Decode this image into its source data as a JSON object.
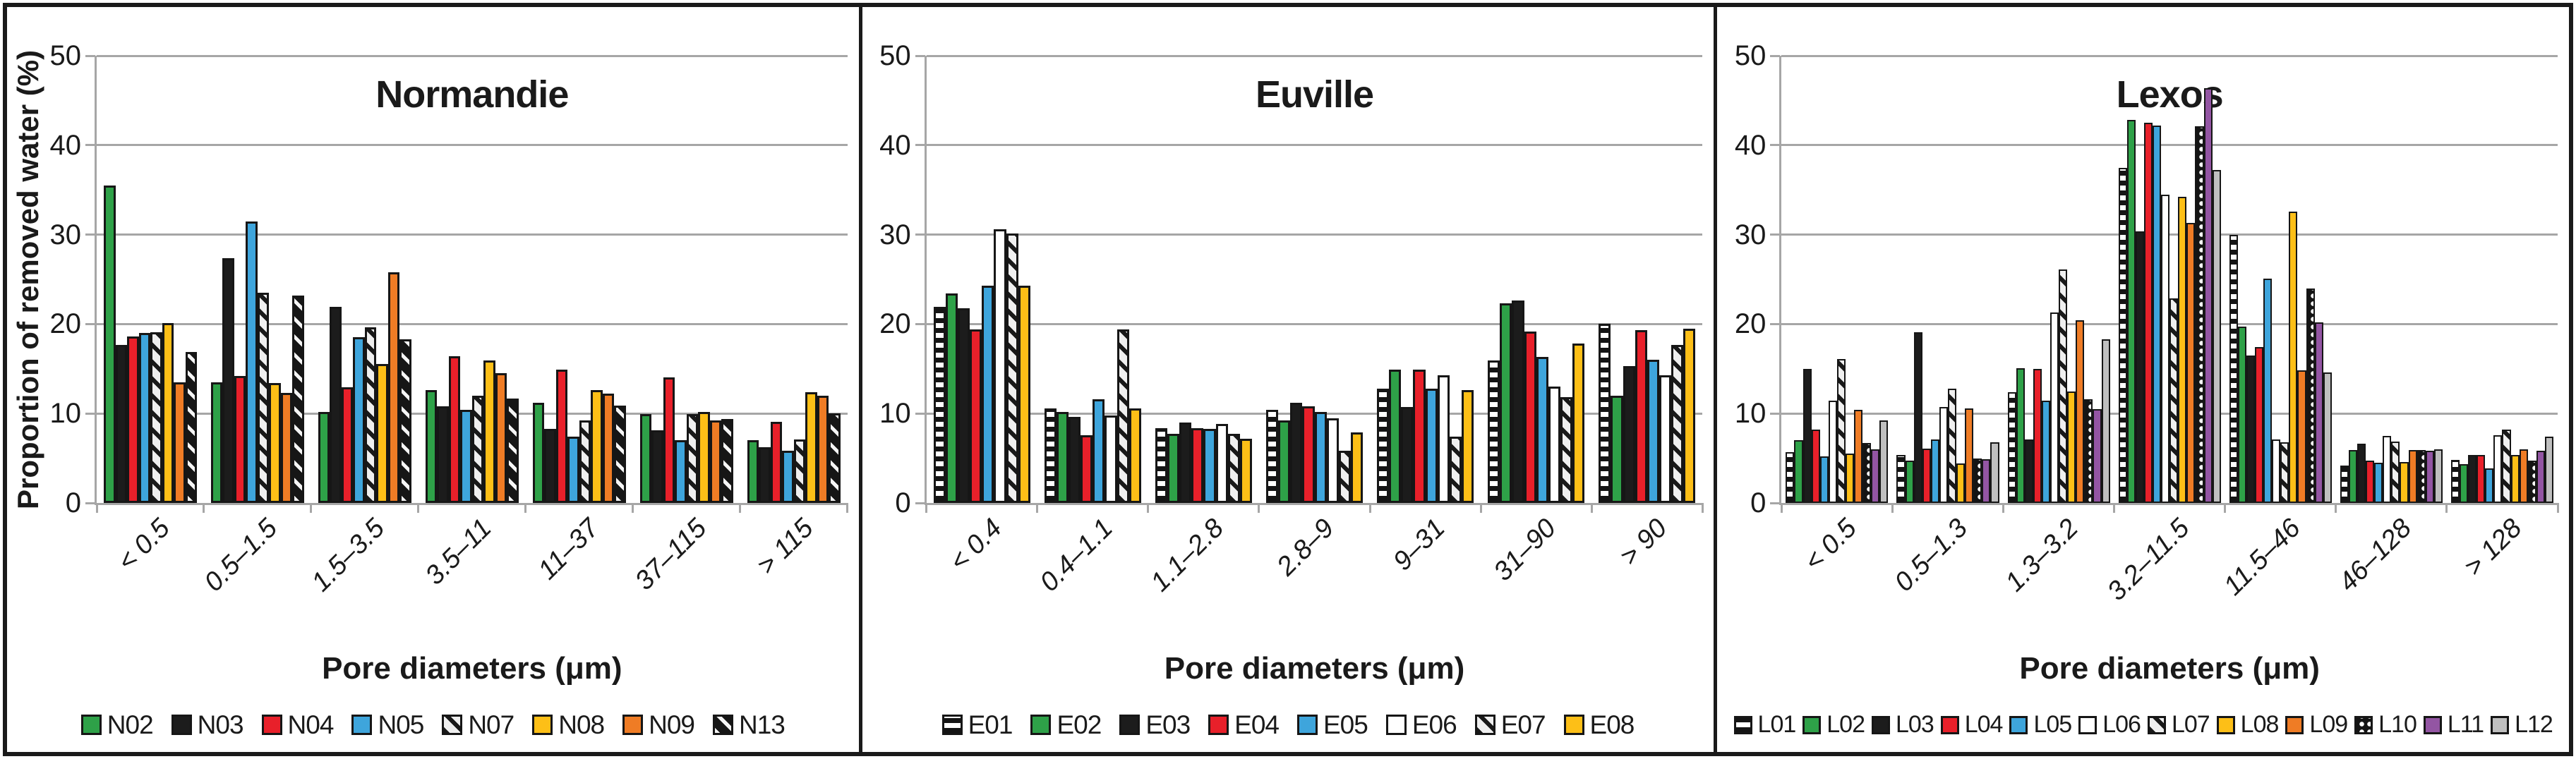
{
  "figure": {
    "y_axis_title": "Proportion of removed water (%)",
    "x_axis_title": "Pore diameters (μm)",
    "colors": {
      "green": "#2EA148",
      "black": "#1C1C1C",
      "red": "#E8202A",
      "blue": "#3EA5DC",
      "gold": "#FDBF17",
      "orange": "#EF7C25",
      "purple": "#9355A3",
      "gray": "#BFBFBF",
      "white": "#FFFFFF",
      "grid": "#A6A6A6",
      "border": "#1A1A1A"
    }
  },
  "chart_data": [
    {
      "type": "bar",
      "title": "Normandie",
      "xlabel": "Pore diameters (μm)",
      "ylabel": "Proportion of removed water (%)",
      "y_title_visible": true,
      "ylim": [
        0,
        50
      ],
      "yticks": [
        0,
        10,
        20,
        30,
        40,
        50
      ],
      "grid": true,
      "legend_position": "bottom",
      "categories": [
        "< 0.5",
        "0.5–1.5",
        "1.5–3.5",
        "3.5–11",
        "11–37",
        "37–115",
        "> 115"
      ],
      "series": [
        {
          "name": "N02",
          "style": "green",
          "values": [
            35.5,
            13.5,
            10.2,
            12.6,
            11.2,
            9.9,
            7.0
          ]
        },
        {
          "name": "N03",
          "style": "black",
          "values": [
            17.7,
            27.4,
            21.9,
            10.8,
            8.3,
            8.1,
            6.2
          ]
        },
        {
          "name": "N04",
          "style": "red",
          "values": [
            18.6,
            14.2,
            12.9,
            16.4,
            14.9,
            14.0,
            9.1
          ]
        },
        {
          "name": "N05",
          "style": "blue",
          "values": [
            19.0,
            31.5,
            18.5,
            10.4,
            7.4,
            7.0,
            5.8
          ]
        },
        {
          "name": "N07",
          "style": "hatch-light",
          "values": [
            19.1,
            23.5,
            19.6,
            12.0,
            9.2,
            9.9,
            7.1
          ]
        },
        {
          "name": "N08",
          "style": "gold",
          "values": [
            20.1,
            13.4,
            15.5,
            15.9,
            12.6,
            10.2,
            12.4
          ]
        },
        {
          "name": "N09",
          "style": "orange",
          "values": [
            13.5,
            12.3,
            25.8,
            14.5,
            12.2,
            9.2,
            12.0
          ]
        },
        {
          "name": "N13",
          "style": "hatch-dark",
          "values": [
            16.9,
            23.2,
            18.3,
            11.7,
            10.9,
            9.4,
            10.0
          ]
        }
      ]
    },
    {
      "type": "bar",
      "title": "Euville",
      "xlabel": "Pore diameters (μm)",
      "ylabel": "Proportion of removed water (%)",
      "y_title_visible": false,
      "ylim": [
        0,
        50
      ],
      "yticks": [
        0,
        10,
        20,
        30,
        40,
        50
      ],
      "grid": true,
      "legend_position": "bottom",
      "categories": [
        "< 0.4",
        "0.4–1.1",
        "1.1–2.8",
        "2.8–9",
        "9–31",
        "31–90",
        "> 90"
      ],
      "series": [
        {
          "name": "E01",
          "style": "stripes-horiz",
          "values": [
            21.9,
            10.6,
            8.4,
            10.4,
            12.8,
            15.9,
            20.0
          ]
        },
        {
          "name": "E02",
          "style": "green",
          "values": [
            23.4,
            10.2,
            7.7,
            9.2,
            14.9,
            22.3,
            12.0
          ]
        },
        {
          "name": "E03",
          "style": "black",
          "values": [
            21.8,
            9.6,
            9.0,
            11.2,
            10.7,
            22.6,
            15.3
          ]
        },
        {
          "name": "E04",
          "style": "red",
          "values": [
            19.4,
            7.6,
            8.4,
            10.8,
            14.9,
            19.2,
            19.3
          ]
        },
        {
          "name": "E05",
          "style": "blue",
          "values": [
            24.3,
            11.6,
            8.3,
            10.2,
            12.8,
            16.3,
            16.0
          ]
        },
        {
          "name": "E06",
          "style": "white",
          "values": [
            30.6,
            9.8,
            8.8,
            9.5,
            14.3,
            13.0,
            14.3
          ]
        },
        {
          "name": "E07",
          "style": "hatch-light",
          "values": [
            30.1,
            19.4,
            7.7,
            5.8,
            7.4,
            11.8,
            17.7
          ]
        },
        {
          "name": "E08",
          "style": "gold",
          "values": [
            24.3,
            10.6,
            7.2,
            7.9,
            12.6,
            17.8,
            19.5
          ]
        }
      ]
    },
    {
      "type": "bar",
      "title": "Lexos",
      "xlabel": "Pore diameters (μm)",
      "ylabel": "Proportion of removed water (%)",
      "y_title_visible": false,
      "ylim": [
        0,
        50
      ],
      "yticks": [
        0,
        10,
        20,
        30,
        40,
        50
      ],
      "grid": true,
      "legend_position": "bottom",
      "categories": [
        "< 0.5",
        "0.5–1.3",
        "1.3–3.2",
        "3.2–11.5",
        "11.5–46",
        "46–128",
        "> 128"
      ],
      "series": [
        {
          "name": "L01",
          "style": "stripes-horiz",
          "values": [
            5.7,
            5.4,
            12.4,
            37.5,
            30.0,
            4.2,
            4.8
          ]
        },
        {
          "name": "L02",
          "style": "green",
          "values": [
            7.0,
            4.7,
            15.1,
            42.8,
            19.7,
            5.9,
            4.3
          ]
        },
        {
          "name": "L03",
          "style": "black",
          "values": [
            15.0,
            19.1,
            7.1,
            30.4,
            16.5,
            6.6,
            5.4
          ]
        },
        {
          "name": "L04",
          "style": "red",
          "values": [
            8.2,
            6.1,
            15.0,
            42.5,
            17.4,
            4.7,
            5.4
          ]
        },
        {
          "name": "L05",
          "style": "blue",
          "values": [
            5.2,
            7.1,
            11.4,
            42.2,
            25.1,
            4.5,
            3.9
          ]
        },
        {
          "name": "L06",
          "style": "white",
          "values": [
            11.4,
            10.7,
            21.3,
            34.5,
            7.1,
            7.5,
            7.6
          ]
        },
        {
          "name": "L07",
          "style": "hatch-light",
          "values": [
            16.1,
            12.8,
            26.1,
            22.9,
            6.8,
            6.9,
            8.2
          ]
        },
        {
          "name": "L08",
          "style": "gold",
          "values": [
            5.5,
            4.4,
            12.5,
            34.2,
            32.6,
            4.6,
            5.4
          ]
        },
        {
          "name": "L09",
          "style": "orange",
          "values": [
            10.4,
            10.6,
            20.4,
            31.3,
            14.8,
            5.9,
            6.0
          ]
        },
        {
          "name": "L10",
          "style": "dots",
          "values": [
            6.7,
            5.0,
            11.6,
            42.1,
            24.0,
            5.9,
            4.7
          ]
        },
        {
          "name": "L11",
          "style": "purple",
          "values": [
            6.0,
            4.9,
            10.5,
            46.4,
            20.2,
            5.8,
            5.8
          ]
        },
        {
          "name": "L12",
          "style": "gray",
          "values": [
            9.2,
            6.8,
            18.3,
            37.2,
            14.6,
            6.0,
            7.4
          ]
        }
      ]
    }
  ]
}
